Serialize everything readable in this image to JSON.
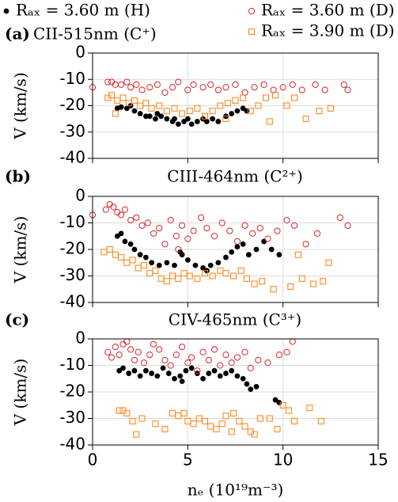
{
  "chart_data": [
    {
      "type": "scatter",
      "label": "(a)",
      "title": "CII-515nm (C⁺)",
      "ylabel": "V (km/s)",
      "legend": "top",
      "xlim": [
        0,
        15
      ],
      "xticks": [
        0,
        5,
        10,
        15
      ],
      "xticklabels": false,
      "ylim": [
        -40,
        0
      ],
      "yticks": [
        -40,
        -30,
        -20,
        -10,
        0
      ],
      "grid": true,
      "series": [
        {
          "name": "Rₐₓ = 3.60 m (H)",
          "color": "#000000",
          "marker": "dot",
          "x": [
            1.3,
            1.5,
            1.8,
            2,
            2.2,
            2.5,
            2.8,
            3,
            3.3,
            3.6,
            3.9,
            4.2,
            4.5,
            4.8,
            5,
            5.2,
            5.5,
            5.8,
            6,
            6.3,
            6.6,
            7,
            7.3,
            7.6,
            7.9,
            8.1,
            4.3,
            3.4
          ],
          "values": [
            -21,
            -20.5,
            -21,
            -20,
            -22,
            -23,
            -24,
            -24,
            -25,
            -24,
            -25,
            -26,
            -27,
            -26,
            -25,
            -27,
            -26,
            -25,
            -26,
            -25,
            -26,
            -24,
            -23,
            -22,
            -21,
            -22,
            -25,
            -23
          ]
        },
        {
          "name": "Rₐₓ = 3.60 m (D)",
          "color": "#d62728",
          "marker": "circle",
          "x": [
            0,
            0.8,
            1,
            1.2,
            1.5,
            1.8,
            2,
            2.3,
            2.6,
            3,
            3.4,
            3.8,
            4.2,
            4.5,
            5,
            5.3,
            5.8,
            6.2,
            6.6,
            7,
            7.5,
            8,
            8.5,
            9,
            9.5,
            10,
            10.5,
            11,
            11.7,
            12.2,
            13.2,
            13.4
          ],
          "values": [
            -13,
            -11,
            -11,
            -12,
            -12,
            -11,
            -13,
            -12,
            -14,
            -13,
            -12,
            -15,
            -13,
            -11,
            -14,
            -12,
            -13,
            -12,
            -14,
            -13,
            -12,
            -15,
            -13,
            -12,
            -14,
            -13,
            -12,
            -14,
            -12,
            -14,
            -12,
            -14
          ]
        },
        {
          "name": "Rₐₓ = 3.90 m (D)",
          "color": "#ff7f0e",
          "marker": "square",
          "x": [
            0.8,
            1,
            1.3,
            1.6,
            1.9,
            2.2,
            2.5,
            2.8,
            3.1,
            3.5,
            3.9,
            4.3,
            4.7,
            5.1,
            5.5,
            5.9,
            6.3,
            6.7,
            7.1,
            7.5,
            7.9,
            8.3,
            8.7,
            9.1,
            9.6,
            10.2,
            10.6,
            11.2,
            11.9,
            12.5,
            1.2,
            7,
            9.3
          ],
          "values": [
            -17,
            -16,
            -18,
            -17,
            -19,
            -18,
            -20,
            -19,
            -21,
            -20,
            -22,
            -21,
            -23,
            -22,
            -21,
            -24,
            -22,
            -20,
            -19,
            -18,
            -17,
            -22,
            -20,
            -17,
            -16,
            -20,
            -17,
            -25,
            -22,
            -21,
            -23,
            -25,
            -26
          ]
        }
      ]
    },
    {
      "type": "scatter",
      "label": "(b)",
      "title": "CIII-464nm (C²⁺)",
      "ylabel": "V (km/s)",
      "xlim": [
        0,
        15
      ],
      "xticks": [
        0,
        5,
        10,
        15
      ],
      "xticklabels": false,
      "ylim": [
        -40,
        0
      ],
      "yticks": [
        -40,
        -30,
        -20,
        -10,
        0
      ],
      "grid": true,
      "series": [
        {
          "color": "#000000",
          "marker": "dot",
          "x": [
            1.3,
            1.5,
            1.7,
            2,
            2.2,
            2.5,
            2.8,
            3.1,
            3.5,
            3.9,
            4.3,
            4.7,
            5,
            5.4,
            5.8,
            6.2,
            6.6,
            7,
            7.3,
            7.6,
            7.9,
            8.2,
            8.6,
            9,
            9.4,
            9.8,
            4.6,
            6
          ],
          "values": [
            -15,
            -14,
            -17,
            -18,
            -20,
            -22,
            -23,
            -25,
            -26,
            -25,
            -26,
            -22,
            -24,
            -26,
            -27,
            -26,
            -25,
            -23,
            -21,
            -19,
            -18,
            -22,
            -20,
            -17,
            -20,
            -22,
            -21,
            -28
          ]
        },
        {
          "color": "#d62728",
          "marker": "circle",
          "x": [
            0,
            0.7,
            0.9,
            1.1,
            1.3,
            1.5,
            1.7,
            2,
            2.3,
            2.6,
            2.9,
            3.2,
            3.5,
            3.8,
            4.1,
            4.4,
            4.7,
            5,
            5.3,
            5.7,
            6,
            6.4,
            6.8,
            7.2,
            7.6,
            8,
            8.4,
            8.8,
            9.2,
            9.7,
            10.2,
            10.6,
            11.2,
            11.8,
            13,
            13.4,
            4.5
          ],
          "values": [
            -7,
            -5,
            -3,
            -4,
            -6,
            -7,
            -5,
            -9,
            -8,
            -11,
            -10,
            -14,
            -12,
            -18,
            -9,
            -15,
            -11,
            -16,
            -13,
            -8,
            -12,
            -15,
            -10,
            -13,
            -17,
            -11,
            -14,
            -12,
            -16,
            -13,
            -9,
            -11,
            -18,
            -14,
            -8,
            -11,
            -20
          ]
        },
        {
          "color": "#ff7f0e",
          "marker": "square",
          "x": [
            0.6,
            0.9,
            1.2,
            1.5,
            1.8,
            2.1,
            2.4,
            2.7,
            3,
            3.3,
            3.6,
            3.9,
            4.2,
            4.5,
            4.8,
            5.1,
            5.5,
            5.9,
            6.3,
            6.7,
            7,
            7.4,
            7.8,
            8.1,
            8.5,
            8.9,
            9.5,
            10.4,
            11,
            11.6,
            12.4,
            10.8,
            12.1
          ],
          "values": [
            -21,
            -20,
            -22,
            -23,
            -25,
            -24,
            -27,
            -26,
            -29,
            -28,
            -31,
            -32,
            -30,
            -31,
            -29,
            -30,
            -31,
            -29,
            -30,
            -28,
            -29,
            -30,
            -28,
            -31,
            -33,
            -32,
            -35,
            -34,
            -31,
            -33,
            -25,
            -22,
            -32
          ]
        }
      ]
    },
    {
      "type": "scatter",
      "label": "(c)",
      "title": "CIV-465nm (C³⁺)",
      "ylabel": "V (km/s)",
      "xlabel": "nₑ (10¹⁹m⁻³)",
      "xlim": [
        0,
        15
      ],
      "xticks": [
        0,
        5,
        10,
        15
      ],
      "xticklabels": true,
      "ylim": [
        -40,
        0
      ],
      "yticks": [
        -40,
        -30,
        -20,
        -10,
        0
      ],
      "grid": true,
      "series": [
        {
          "color": "#000000",
          "marker": "dot",
          "x": [
            1.4,
            1.6,
            1.9,
            2.2,
            2.5,
            2.8,
            3.1,
            3.4,
            3.7,
            4,
            4.3,
            4.6,
            4.9,
            5.2,
            5.5,
            5.8,
            6.1,
            6.4,
            6.7,
            7,
            7.3,
            7.6,
            7.9,
            8.1,
            8.3,
            8.6,
            9.6,
            9.8,
            4.7
          ],
          "values": [
            -12,
            -11,
            -13,
            -12,
            -14,
            -12,
            -13,
            -14,
            -11,
            -13,
            -15,
            -14,
            -12,
            -11,
            -13,
            -15,
            -13,
            -12,
            -14,
            -13,
            -12,
            -14,
            -15,
            -17,
            -19,
            -18,
            -23,
            -24,
            -16
          ]
        },
        {
          "color": "#d62728",
          "marker": "circle",
          "x": [
            0.8,
            1,
            1.2,
            1.4,
            1.6,
            1.8,
            2,
            2.2,
            2.4,
            2.7,
            3,
            3.2,
            3.5,
            3.8,
            4.1,
            4.4,
            4.7,
            5,
            5.2,
            5.5,
            5.8,
            6.1,
            6.4,
            6.7,
            7,
            7.3,
            7.6,
            8,
            8.3,
            8.7,
            9.2,
            9.8,
            10.2,
            10.5
          ],
          "values": [
            -5,
            -7,
            -3,
            -6,
            -2,
            -1,
            -4,
            -8,
            -5,
            -9,
            -6,
            -2,
            -4,
            -8,
            -10,
            -6,
            -3,
            -9,
            -7,
            -12,
            -5,
            -8,
            -4,
            -10,
            -6,
            -9,
            -7,
            -5,
            -11,
            -8,
            -9,
            -6,
            -5,
            -1
          ]
        },
        {
          "color": "#ff7f0e",
          "marker": "square",
          "x": [
            1.4,
            1.6,
            1.8,
            2.1,
            2.3,
            2.6,
            3.3,
            3.8,
            4.2,
            4.5,
            4.8,
            5,
            5.3,
            5.6,
            5.9,
            6.2,
            6.5,
            6.8,
            7,
            7.3,
            7.7,
            8,
            8.3,
            8.5,
            8.8,
            9.3,
            9.7,
            10,
            10.3,
            10.6,
            11.4,
            12,
            7.4
          ],
          "values": [
            -27,
            -27,
            -28,
            -31,
            -36,
            -30,
            -32,
            -34,
            -28,
            -29,
            -28,
            -31,
            -32,
            -30,
            -31,
            -33,
            -34,
            -32,
            -29,
            -35,
            -31,
            -33,
            -35,
            -36,
            -30,
            -30,
            -34,
            -25,
            -27,
            -31,
            -26,
            -31,
            -28
          ]
        }
      ]
    }
  ]
}
